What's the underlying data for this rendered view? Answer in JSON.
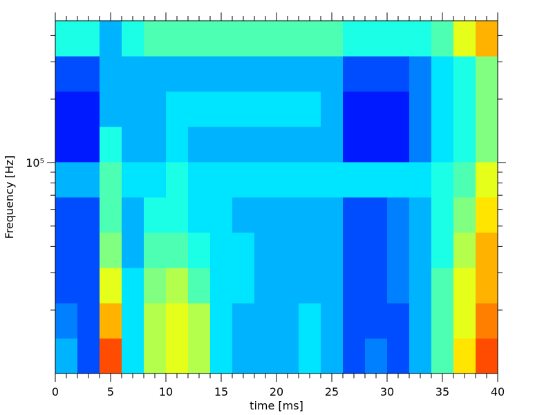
{
  "chart_data": {
    "type": "spectrogram",
    "xlabel": "time [ms]",
    "ylabel": "Frequency [Hz]",
    "xlim": [
      0,
      40
    ],
    "xticks": [
      0,
      5,
      10,
      15,
      20,
      25,
      30,
      35,
      40
    ],
    "xminor_ticks": [
      1,
      2,
      3,
      4,
      6,
      7,
      8,
      9,
      11,
      12,
      13,
      14,
      16,
      17,
      18,
      19,
      21,
      22,
      23,
      24,
      26,
      27,
      28,
      29,
      31,
      32,
      33,
      34,
      36,
      37,
      38,
      39
    ],
    "ylim": [
      10000,
      470000
    ],
    "yscale": "log",
    "yticks": [
      {
        "value": 100000,
        "label": "10⁵"
      }
    ],
    "yminor_ticks": [
      20000,
      30000,
      40000,
      50000,
      60000,
      70000,
      80000,
      90000,
      200000,
      300000,
      400000
    ],
    "colormap": "jet",
    "zlim": [
      0,
      1
    ],
    "z": [
      [
        0.3,
        0.2,
        0.8,
        0.35,
        0.55,
        0.6,
        0.55,
        0.35,
        0.3,
        0.3,
        0.3,
        0.35,
        0.3,
        0.2,
        0.25,
        0.2,
        0.3,
        0.45,
        0.65,
        0.8
      ],
      [
        0.25,
        0.2,
        0.7,
        0.35,
        0.55,
        0.6,
        0.55,
        0.35,
        0.3,
        0.3,
        0.3,
        0.35,
        0.3,
        0.2,
        0.2,
        0.2,
        0.3,
        0.45,
        0.6,
        0.75
      ],
      [
        0.2,
        0.2,
        0.6,
        0.35,
        0.5,
        0.55,
        0.45,
        0.35,
        0.35,
        0.3,
        0.3,
        0.3,
        0.3,
        0.2,
        0.2,
        0.25,
        0.3,
        0.45,
        0.6,
        0.7
      ],
      [
        0.2,
        0.2,
        0.5,
        0.3,
        0.45,
        0.45,
        0.4,
        0.35,
        0.35,
        0.3,
        0.3,
        0.3,
        0.3,
        0.2,
        0.2,
        0.25,
        0.3,
        0.4,
        0.55,
        0.7
      ],
      [
        0.2,
        0.2,
        0.45,
        0.3,
        0.4,
        0.4,
        0.35,
        0.35,
        0.3,
        0.3,
        0.3,
        0.3,
        0.3,
        0.2,
        0.2,
        0.25,
        0.3,
        0.4,
        0.5,
        0.65
      ],
      [
        0.3,
        0.3,
        0.45,
        0.35,
        0.35,
        0.4,
        0.35,
        0.35,
        0.35,
        0.35,
        0.35,
        0.35,
        0.35,
        0.35,
        0.35,
        0.35,
        0.35,
        0.4,
        0.45,
        0.6
      ],
      [
        0.15,
        0.15,
        0.4,
        0.3,
        0.3,
        0.35,
        0.3,
        0.3,
        0.3,
        0.3,
        0.3,
        0.3,
        0.3,
        0.15,
        0.15,
        0.15,
        0.25,
        0.35,
        0.4,
        0.5
      ],
      [
        0.15,
        0.15,
        0.3,
        0.3,
        0.3,
        0.35,
        0.35,
        0.35,
        0.35,
        0.35,
        0.35,
        0.35,
        0.3,
        0.15,
        0.15,
        0.15,
        0.25,
        0.35,
        0.4,
        0.5
      ],
      [
        0.2,
        0.2,
        0.3,
        0.3,
        0.3,
        0.3,
        0.3,
        0.3,
        0.3,
        0.3,
        0.3,
        0.3,
        0.3,
        0.2,
        0.2,
        0.2,
        0.25,
        0.35,
        0.4,
        0.5
      ],
      [
        0.4,
        0.4,
        0.3,
        0.4,
        0.45,
        0.45,
        0.45,
        0.45,
        0.45,
        0.45,
        0.45,
        0.45,
        0.45,
        0.4,
        0.4,
        0.4,
        0.4,
        0.45,
        0.6,
        0.7
      ]
    ]
  }
}
